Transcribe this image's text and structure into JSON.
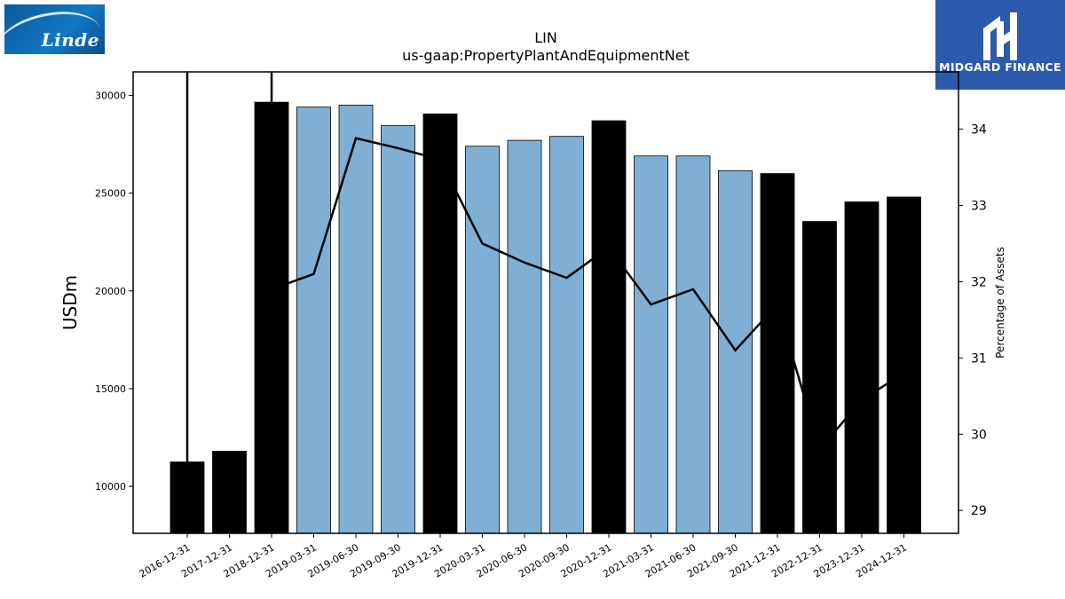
{
  "logos": {
    "left_text": "Linde",
    "right_text": "MIDGARD FINANCE"
  },
  "chart_data": {
    "type": "bar",
    "title": "LIN",
    "subtitle": "us-gaap:PropertyPlantAndEquipmentNet",
    "ylabel": "USDm",
    "y2label": "Percentage of Assets",
    "ylim": [
      7600,
      31200
    ],
    "y2lim": [
      28.7,
      34.75
    ],
    "yticks": [
      10000,
      15000,
      20000,
      25000,
      30000
    ],
    "y2ticks": [
      29,
      30,
      31,
      32,
      33,
      34
    ],
    "categories": [
      "2016-12-31",
      "2017-12-31",
      "2018-12-31",
      "2019-03-31",
      "2019-06-30",
      "2019-09-30",
      "2019-12-31",
      "2020-03-31",
      "2020-06-30",
      "2020-09-30",
      "2020-12-31",
      "2021-03-31",
      "2021-06-30",
      "2021-09-30",
      "2021-12-31",
      "2022-12-31",
      "2023-12-31",
      "2024-12-31"
    ],
    "series": [
      {
        "type": "bar",
        "values": [
          11250,
          11800,
          29650,
          29400,
          29500,
          28450,
          29050,
          27400,
          27700,
          27900,
          28700,
          26900,
          26900,
          26150,
          26000,
          23550,
          24550,
          24800
        ],
        "colors": [
          "#000000",
          "#000000",
          "#000000",
          "#7fafd4",
          "#7fafd4",
          "#7fafd4",
          "#000000",
          "#7fafd4",
          "#7fafd4",
          "#7fafd4",
          "#000000",
          "#7fafd4",
          "#7fafd4",
          "#7fafd4",
          "#000000",
          "#000000",
          "#000000",
          "#000000"
        ]
      },
      {
        "type": "line",
        "axis": "right",
        "color": "#000000",
        "values": [
          null,
          null,
          31.9,
          32.1,
          33.88,
          33.75,
          33.6,
          32.5,
          32.25,
          32.05,
          32.45,
          31.7,
          31.9,
          31.1,
          31.7,
          29.8,
          30.45,
          30.8
        ]
      }
    ]
  }
}
